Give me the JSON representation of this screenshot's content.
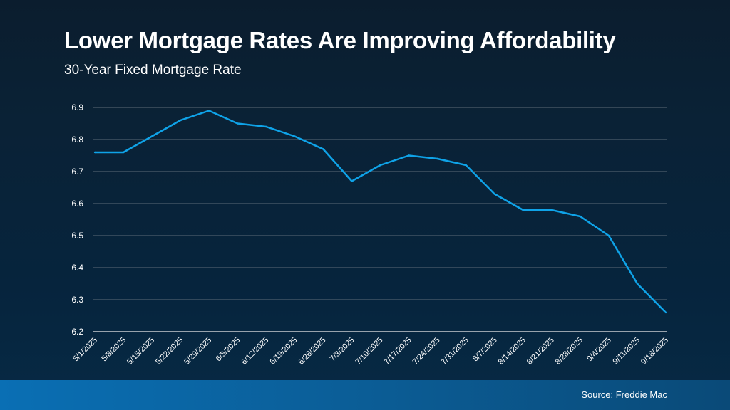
{
  "chart_data": {
    "type": "line",
    "title": "Lower Mortgage Rates Are Improving Affordability",
    "subtitle": "30-Year Fixed Mortgage Rate",
    "xlabel": "",
    "ylabel": "",
    "categories": [
      "5/1/2025",
      "5/8/2025",
      "5/15/2025",
      "5/22/2025",
      "5/29/2025",
      "6/5/2025",
      "6/12/2025",
      "6/19/2025",
      "6/26/2025",
      "7/3/2025",
      "7/10/2025",
      "7/17/2025",
      "7/24/2025",
      "7/31/2025",
      "8/7/2025",
      "8/14/2025",
      "8/21/2025",
      "8/28/2025",
      "9/4/2025",
      "9/11/2025",
      "9/18/2025"
    ],
    "values": [
      6.76,
      6.76,
      6.81,
      6.86,
      6.89,
      6.85,
      6.84,
      6.81,
      6.77,
      6.67,
      6.72,
      6.75,
      6.74,
      6.72,
      6.63,
      6.58,
      6.58,
      6.56,
      6.5,
      6.35,
      6.26
    ],
    "ylim": [
      6.2,
      6.9
    ],
    "yticks": [
      "6.2",
      "6.3",
      "6.4",
      "6.5",
      "6.6",
      "6.7",
      "6.8",
      "6.9"
    ],
    "grid": true,
    "line_color": "#0fa3e8"
  },
  "footer": {
    "source": "Source: Freddie Mac"
  }
}
